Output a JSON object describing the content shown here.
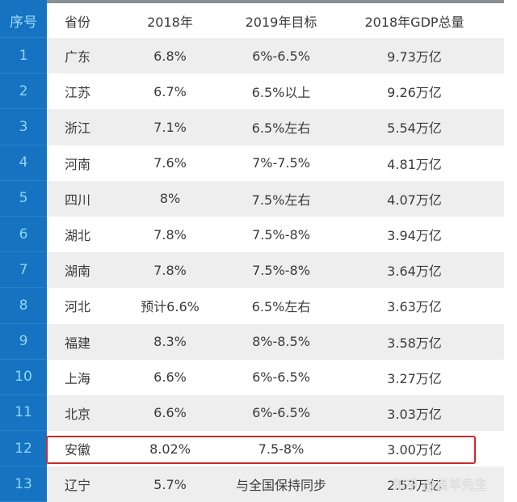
{
  "table": {
    "headers": {
      "index": "序号",
      "province": "省份",
      "growth_2018": "2018年",
      "target_2019": "2019年目标",
      "gdp_2018": "2018年GDP总量"
    },
    "rows": [
      {
        "index": "1",
        "province": "广东",
        "growth_2018": "6.8%",
        "target_2019": "6%-6.5%",
        "gdp_2018": "9.73万亿"
      },
      {
        "index": "2",
        "province": "江苏",
        "growth_2018": "6.7%",
        "target_2019": "6.5%以上",
        "gdp_2018": "9.26万亿"
      },
      {
        "index": "3",
        "province": "浙江",
        "growth_2018": "7.1%",
        "target_2019": "6.5%左右",
        "gdp_2018": "5.54万亿"
      },
      {
        "index": "4",
        "province": "河南",
        "growth_2018": "7.6%",
        "target_2019": "7%-7.5%",
        "gdp_2018": "4.81万亿"
      },
      {
        "index": "5",
        "province": "四川",
        "growth_2018": "8%",
        "target_2019": "7.5%左右",
        "gdp_2018": "4.07万亿"
      },
      {
        "index": "6",
        "province": "湖北",
        "growth_2018": "7.8%",
        "target_2019": "7.5%-8%",
        "gdp_2018": "3.94万亿"
      },
      {
        "index": "7",
        "province": "湖南",
        "growth_2018": "7.8%",
        "target_2019": "7.5%-8%",
        "gdp_2018": "3.64万亿"
      },
      {
        "index": "8",
        "province": "河北",
        "growth_2018": "预计6.6%",
        "target_2019": "6.5%左右",
        "gdp_2018": "3.63万亿"
      },
      {
        "index": "9",
        "province": "福建",
        "growth_2018": "8.3%",
        "target_2019": "8%-8.5%",
        "gdp_2018": "3.58万亿"
      },
      {
        "index": "10",
        "province": "上海",
        "growth_2018": "6.6%",
        "target_2019": "6%-6.5%",
        "gdp_2018": "3.27万亿"
      },
      {
        "index": "11",
        "province": "北京",
        "growth_2018": "6.6%",
        "target_2019": "6%-6.5%",
        "gdp_2018": "3.03万亿"
      },
      {
        "index": "12",
        "province": "安徽",
        "growth_2018": "8.02%",
        "target_2019": "7.5-8%",
        "gdp_2018": "3.00万亿"
      },
      {
        "index": "13",
        "province": "辽宁",
        "growth_2018": "5.7%",
        "target_2019": "与全国保持同步",
        "gdp_2018": "2.53万亿"
      }
    ],
    "highlighted_row_index": "12"
  },
  "colors": {
    "sidebar_blue": "#1673c2",
    "index_text": "#8fd6f5",
    "stripe_gray": "#eeeeee",
    "highlight_red": "#cc2a2a"
  },
  "watermark": "知乎 @良羊先生"
}
